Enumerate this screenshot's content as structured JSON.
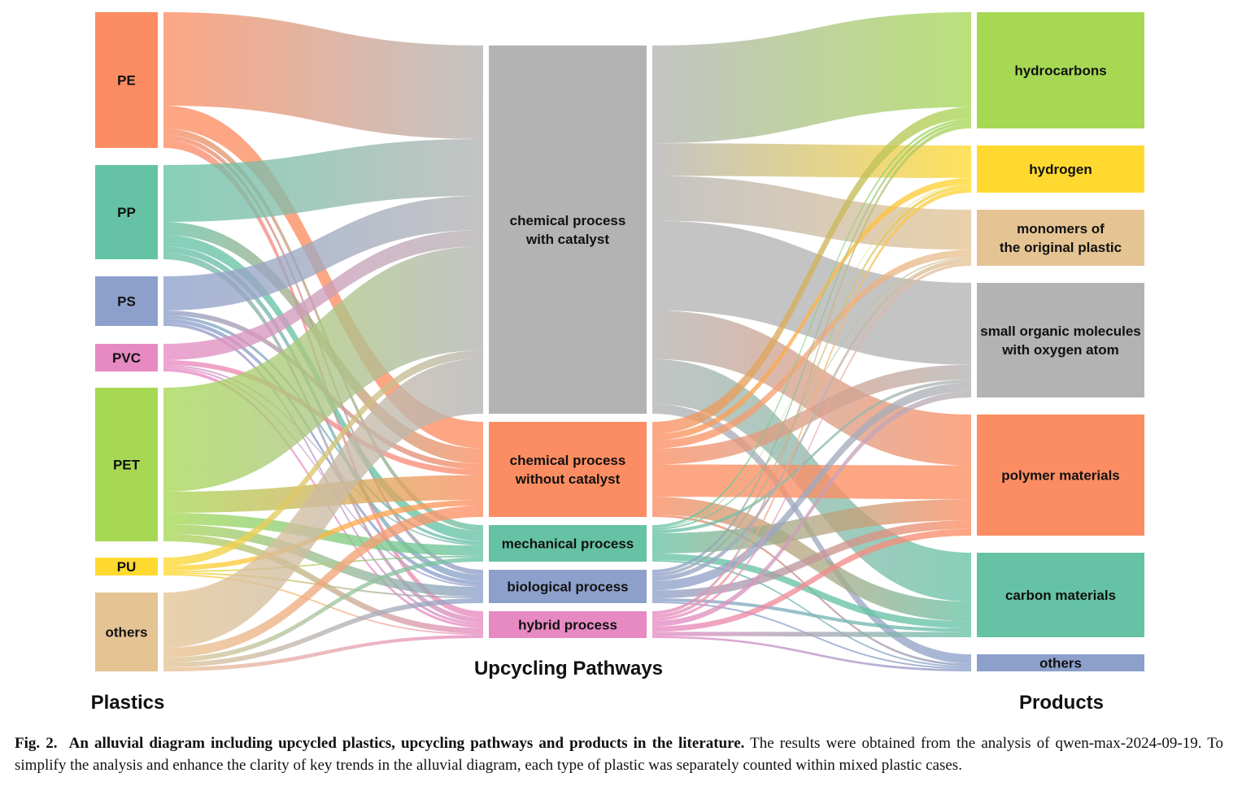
{
  "titles": {
    "plastics": "Plastics",
    "pathways": "Upcycling Pathways",
    "products": "Products"
  },
  "colors": {
    "orange": "#FC8D62",
    "teal": "#66C2A5",
    "blue": "#8DA0CB",
    "pink": "#E78AC3",
    "green": "#A6D854",
    "yellow": "#FFD92F",
    "tan": "#E5C494",
    "gray": "#B3B3B3"
  },
  "nodes": {
    "plastics": [
      {
        "id": "pe",
        "label": [
          "PE"
        ],
        "color": "#FC8D62"
      },
      {
        "id": "pp",
        "label": [
          "PP"
        ],
        "color": "#66C2A5"
      },
      {
        "id": "ps",
        "label": [
          "PS"
        ],
        "color": "#8DA0CB"
      },
      {
        "id": "pvc",
        "label": [
          "PVC"
        ],
        "color": "#E78AC3"
      },
      {
        "id": "pet",
        "label": [
          "PET"
        ],
        "color": "#A6D854"
      },
      {
        "id": "pu",
        "label": [
          "PU"
        ],
        "color": "#FFD92F"
      },
      {
        "id": "others-plastic",
        "label": [
          "others"
        ],
        "color": "#E5C494"
      }
    ],
    "pathways": [
      {
        "id": "chem-cat",
        "label": [
          "chemical process",
          "with catalyst"
        ],
        "color": "#B3B3B3"
      },
      {
        "id": "chem-nocat",
        "label": [
          "chemical process",
          "without catalyst"
        ],
        "color": "#FC8D62"
      },
      {
        "id": "mechanical",
        "label": [
          "mechanical process"
        ],
        "color": "#66C2A5"
      },
      {
        "id": "biological",
        "label": [
          "biological process"
        ],
        "color": "#8DA0CB"
      },
      {
        "id": "hybrid",
        "label": [
          "hybrid process"
        ],
        "color": "#E78AC3"
      }
    ],
    "products": [
      {
        "id": "hydrocarbons",
        "label": [
          "hydrocarbons"
        ],
        "color": "#A6D854"
      },
      {
        "id": "hydrogen",
        "label": [
          "hydrogen"
        ],
        "color": "#FFD92F"
      },
      {
        "id": "monomers",
        "label": [
          "monomers of",
          "the original plastic"
        ],
        "color": "#E5C494"
      },
      {
        "id": "small-organic",
        "label": [
          "small organic molecules",
          "with oxygen atom"
        ],
        "color": "#B3B3B3"
      },
      {
        "id": "polymer",
        "label": [
          "polymer materials"
        ],
        "color": "#FC8D62"
      },
      {
        "id": "carbon",
        "label": [
          "carbon materials"
        ],
        "color": "#66C2A5"
      },
      {
        "id": "others-product",
        "label": [
          "others"
        ],
        "color": "#8DA0CB"
      }
    ]
  },
  "caption": {
    "fig_label": "Fig. 2.",
    "bold_title": "An alluvial diagram including upcycled plastics, upcycling pathways and products in the literature.",
    "text": "The results were obtained from the analysis of qwen-max-2024-09-19. To simplify the analysis and enhance the clarity of key trends in the alluvial diagram, each type of plastic was separately counted within mixed plastic cases."
  }
}
